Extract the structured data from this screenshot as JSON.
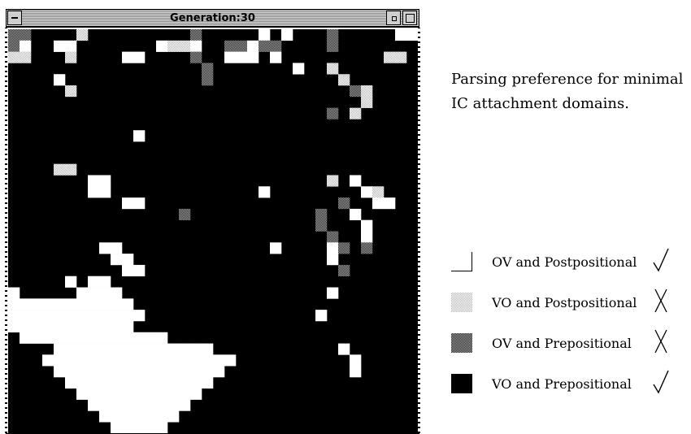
{
  "window": {
    "title": "Generation:30",
    "grid_rows": 36,
    "grid_cols": 36,
    "cells": [
      "3300002000000000300000101000300000WW",
      "310011000000012210033133000030000000",
      "220002000011000030011101000000000220",
      "000000000000000003000000010020000000",
      "000010000000000003000000000002000000",
      "000002000000000000000000000000320000",
      "000000000000000000000000000000020000",
      "000000000000000000000000000030200000",
      "000000000000000000000000000000000000",
      "000000000001000000000000000000000000",
      "000000000000000000000000000000000000",
      "000000000000000000000000000000000000",
      "000022000000000000000000000000000000",
      "000000011000000000000000000020100000",
      "000000011000000000000010000000012000",
      "000000000011000000000000000003001100",
      "000000000000000300000000000300100000",
      "000000000000000000000000000300010000",
      "000000000000000000000000000030010000",
      "000000001100000000000001000013030000",
      "000000000110000000000000000010000000",
      "000000000011000000000000000003000000",
      "000001011000000000000000000000000000",
      "100000111100000000000000000010000000",
      "111111111110000000000000000000000000",
      "111111111111000000000000000100000000",
      "111111111110000000000000000000000000",
      "011111111111110000000000000000000000",
      "000011111111111111000000000001000000",
      "000111111111111111110000000000100000",
      "000011111111111111100000000000100000",
      "000001111111111111000000000000000000",
      "000000111111111110000000000000000000",
      "000000011111111100000000000000000000",
      "000000001111111000000000000000000000",
      "000000000111110000000000000000000000"
    ]
  },
  "caption": "Parsing preference for minimal IC attachment domains.",
  "legend": [
    {
      "swatch": "white",
      "label": "OV and Postpositional",
      "mark": "check"
    },
    {
      "swatch": "light",
      "label": "VO and Postpositional",
      "mark": "cross"
    },
    {
      "swatch": "dark",
      "label": "OV and Prepositional",
      "mark": "cross"
    },
    {
      "swatch": "black",
      "label": "VO and Prepositional",
      "mark": "check"
    }
  ],
  "colors": {
    "black": "#000000",
    "white": "#ffffff",
    "light_a": "#bbbbbb",
    "dark_a": "#333333"
  }
}
